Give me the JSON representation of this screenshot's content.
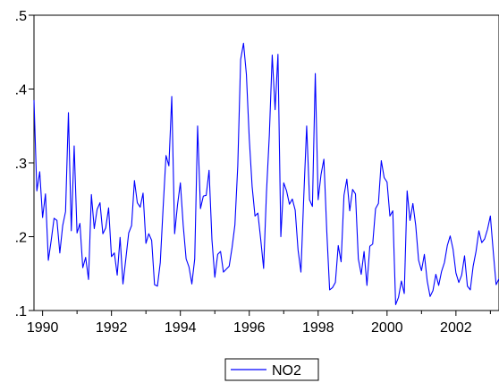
{
  "chart_data": {
    "type": "line",
    "title": "",
    "xlabel": "",
    "ylabel": "",
    "xlim": [
      1989.75,
      2003.25
    ],
    "ylim": [
      0.1,
      0.5
    ],
    "x_ticks": [
      1990,
      1992,
      1994,
      1996,
      1998,
      2000,
      2002
    ],
    "x_tick_labels": [
      "1990",
      "1992",
      "1994",
      "1996",
      "1998",
      "2000",
      "2002"
    ],
    "y_ticks": [
      0.1,
      0.2,
      0.3,
      0.4,
      0.5
    ],
    "y_tick_labels": [
      ".1",
      ".2",
      ".3",
      ".4",
      ".5"
    ],
    "grid": false,
    "legend_position": "bottom-center",
    "x_start": 1989.75,
    "x_step": 0.08333,
    "series": [
      {
        "name": "NO2",
        "color": "#0000ff",
        "values": [
          0.385,
          0.262,
          0.288,
          0.226,
          0.258,
          0.168,
          0.195,
          0.225,
          0.222,
          0.178,
          0.215,
          0.234,
          0.368,
          0.208,
          0.323,
          0.205,
          0.218,
          0.158,
          0.172,
          0.142,
          0.257,
          0.211,
          0.237,
          0.246,
          0.204,
          0.212,
          0.239,
          0.173,
          0.178,
          0.148,
          0.199,
          0.136,
          0.17,
          0.205,
          0.215,
          0.276,
          0.246,
          0.24,
          0.259,
          0.191,
          0.204,
          0.195,
          0.135,
          0.133,
          0.165,
          0.24,
          0.31,
          0.296,
          0.39,
          0.204,
          0.243,
          0.273,
          0.215,
          0.17,
          0.159,
          0.136,
          0.17,
          0.35,
          0.238,
          0.255,
          0.256,
          0.29,
          0.196,
          0.145,
          0.176,
          0.18,
          0.152,
          0.156,
          0.16,
          0.185,
          0.216,
          0.296,
          0.44,
          0.462,
          0.42,
          0.333,
          0.268,
          0.228,
          0.232,
          0.196,
          0.157,
          0.26,
          0.338,
          0.446,
          0.372,
          0.447,
          0.2,
          0.273,
          0.262,
          0.244,
          0.251,
          0.236,
          0.182,
          0.152,
          0.255,
          0.35,
          0.25,
          0.241,
          0.421,
          0.25,
          0.284,
          0.305,
          0.208,
          0.128,
          0.131,
          0.138,
          0.188,
          0.166,
          0.256,
          0.278,
          0.235,
          0.264,
          0.258,
          0.17,
          0.149,
          0.18,
          0.134,
          0.187,
          0.19,
          0.238,
          0.245,
          0.303,
          0.28,
          0.274,
          0.228,
          0.235,
          0.108,
          0.118,
          0.14,
          0.123,
          0.262,
          0.222,
          0.245,
          0.215,
          0.168,
          0.154,
          0.176,
          0.14,
          0.119,
          0.127,
          0.149,
          0.134,
          0.153,
          0.165,
          0.188,
          0.201,
          0.183,
          0.151,
          0.138,
          0.148,
          0.174,
          0.133,
          0.128,
          0.16,
          0.18,
          0.208,
          0.192,
          0.197,
          0.21,
          0.228,
          0.18,
          0.135,
          0.143,
          0.125
        ]
      }
    ]
  }
}
